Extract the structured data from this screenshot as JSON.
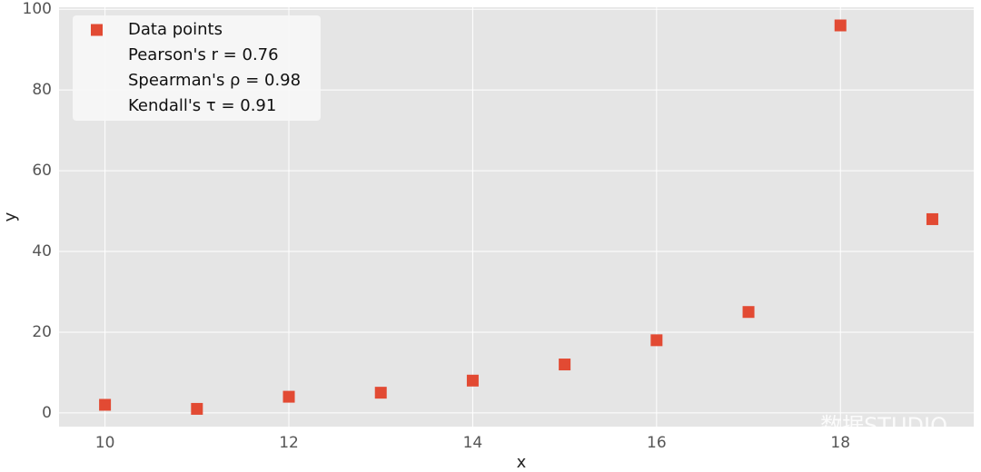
{
  "chart_data": {
    "type": "scatter",
    "series": [
      {
        "name": "Data points",
        "color": "#E24A33",
        "x": [
          10,
          11,
          12,
          13,
          14,
          15,
          16,
          17,
          18,
          19
        ],
        "values": [
          2,
          1,
          4,
          5,
          8,
          12,
          18,
          25,
          96,
          48
        ]
      }
    ],
    "legend_extra": [
      "Pearson's r = 0.76",
      "Spearman's ρ = 0.98",
      "Kendall's τ = 0.91"
    ],
    "xlabel": "x",
    "ylabel": "y",
    "xlim": [
      9.5,
      19.45
    ],
    "xticks": [
      10,
      12,
      14,
      16,
      18
    ],
    "ylim": [
      -3.4,
      100.5
    ],
    "yticks": [
      0,
      20,
      40,
      60,
      80,
      100
    ],
    "grid": true,
    "legend": "upper left",
    "watermark": "数据STUDIO"
  }
}
